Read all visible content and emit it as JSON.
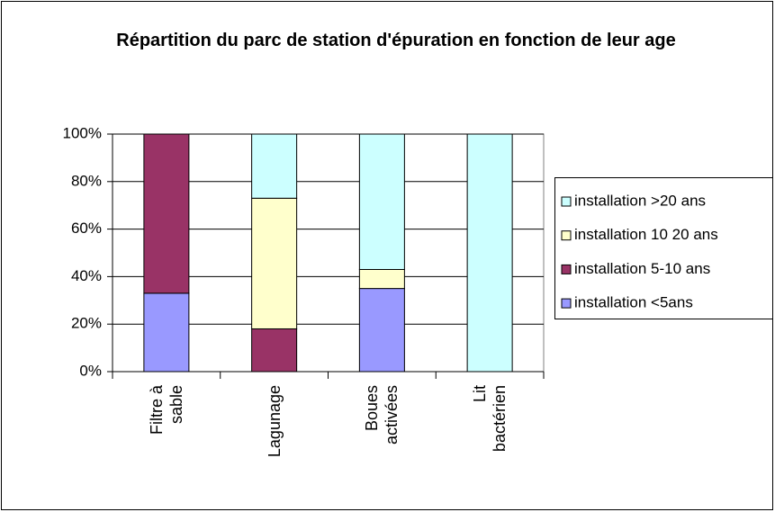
{
  "chart_data": {
    "type": "bar",
    "stacked": "percent",
    "title": "Répartition du parc de station d'épuration en fonction de leur age",
    "categories": [
      "Filtre à sable",
      "Lagunage",
      "Boues activées",
      "Lit bactérien"
    ],
    "series": [
      {
        "name": "installation <5ans",
        "color": "#9999ff",
        "values": [
          33,
          0,
          35,
          0
        ]
      },
      {
        "name": "installation 5-10 ans",
        "color": "#993366",
        "values": [
          67,
          18,
          0,
          0
        ]
      },
      {
        "name": "installation 10 20 ans",
        "color": "#ffffcc",
        "values": [
          0,
          55,
          8,
          0
        ]
      },
      {
        "name": "installation >20 ans",
        "color": "#ccffff",
        "values": [
          0,
          27,
          57,
          100
        ]
      }
    ],
    "ylim": [
      0,
      100
    ],
    "yticks": [
      {
        "value": 0,
        "label": "0%"
      },
      {
        "value": 20,
        "label": "20%"
      },
      {
        "value": 40,
        "label": "40%"
      },
      {
        "value": 60,
        "label": "60%"
      },
      {
        "value": 80,
        "label": "80%"
      },
      {
        "value": 100,
        "label": "100%"
      }
    ],
    "grid": true,
    "legend": "right"
  }
}
